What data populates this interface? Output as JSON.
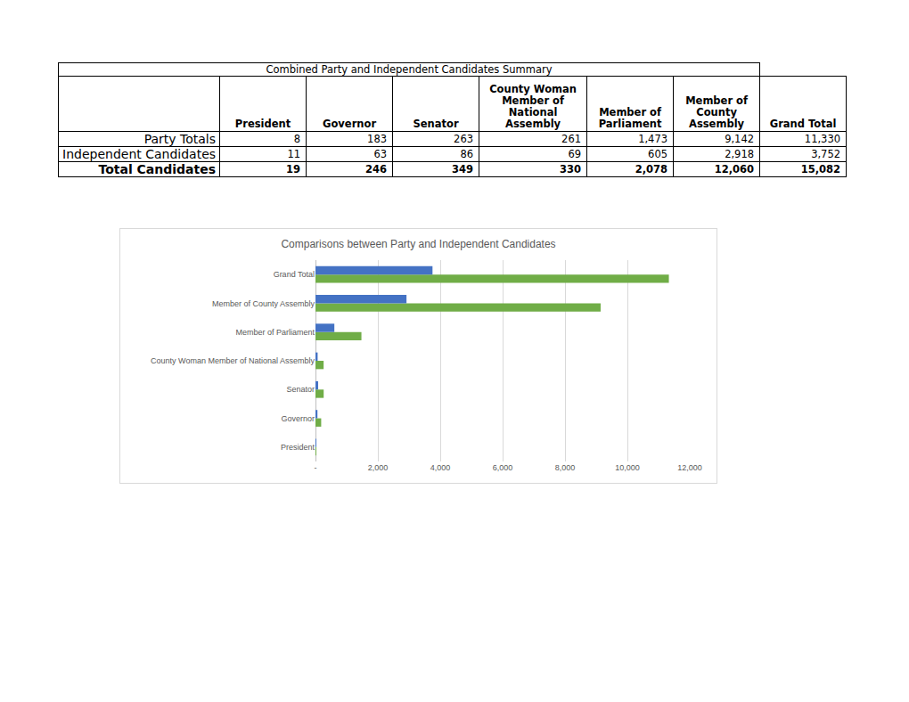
{
  "table": {
    "title": "Combined Party and Independent Candidates Summary",
    "columns": [
      "President",
      "Governor",
      "Senator",
      "County Woman Member of National Assembly",
      "Member of Parliament",
      "Member of County Assembly",
      "Grand Total"
    ],
    "rows": [
      {
        "label": "Party Totals",
        "cells": [
          "8",
          "183",
          "263",
          "261",
          "1,473",
          "9,142",
          "11,330"
        ],
        "bold": false
      },
      {
        "label": "Independent Candidates",
        "cells": [
          "11",
          "63",
          "86",
          "69",
          "605",
          "2,918",
          "3,752"
        ],
        "bold": false
      },
      {
        "label": "Total Candidates",
        "cells": [
          "19",
          "246",
          "349",
          "330",
          "2,078",
          "12,060",
          "15,082"
        ],
        "bold": true
      }
    ]
  },
  "chart_data": {
    "type": "bar",
    "title": "Comparisons between Party and Independent Candidates",
    "orientation": "horizontal",
    "categories": [
      "President",
      "Governor",
      "Senator",
      "County Woman Member of National Assembly",
      "Member of Parliament",
      "Member of County Assembly",
      "Grand Total"
    ],
    "series": [
      {
        "name": "Party Totals",
        "color": "#70ad47",
        "values": [
          8,
          183,
          263,
          261,
          1473,
          9142,
          11330
        ]
      },
      {
        "name": "Independent Candidates",
        "color": "#4472c4",
        "values": [
          11,
          63,
          86,
          69,
          605,
          2918,
          3752
        ]
      }
    ],
    "xlim": [
      0,
      12000
    ],
    "xticks": [
      {
        "value": 0,
        "label": "-"
      },
      {
        "value": 2000,
        "label": "2,000"
      },
      {
        "value": 4000,
        "label": "4,000"
      },
      {
        "value": 6000,
        "label": "6,000"
      },
      {
        "value": 8000,
        "label": "8,000"
      },
      {
        "value": 10000,
        "label": "10,000"
      },
      {
        "value": 12000,
        "label": "12,000"
      }
    ],
    "grid": true
  }
}
